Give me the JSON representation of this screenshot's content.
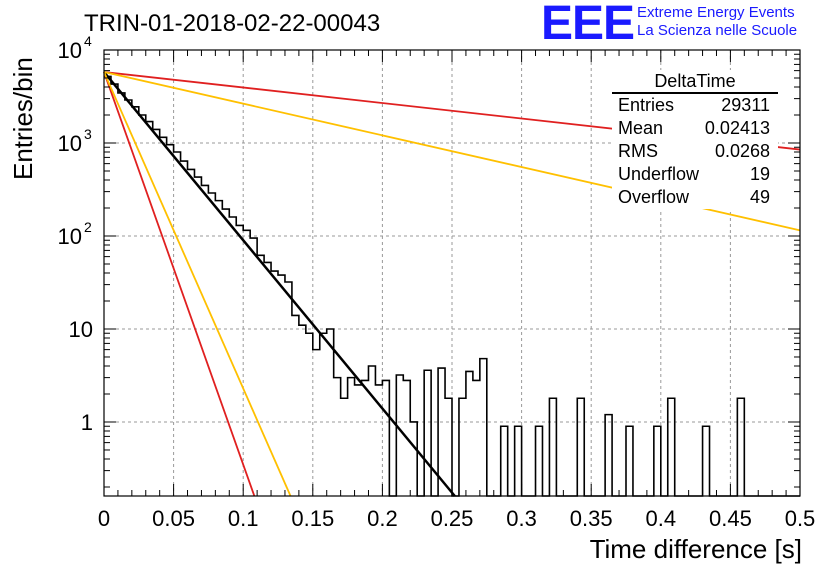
{
  "title": "TRIN-01-2018-02-22-00043",
  "logo": {
    "mark": "EEE",
    "line1": "Extreme Energy Events",
    "line2": "La Scienza nelle Scuole",
    "color": "#1a1aff"
  },
  "stats": {
    "name": "DeltaTime",
    "rows": [
      {
        "label": "Entries",
        "value": "29311"
      },
      {
        "label": "Mean",
        "value": "0.02413"
      },
      {
        "label": "RMS",
        "value": "0.0268"
      },
      {
        "label": "Underflow",
        "value": "19"
      },
      {
        "label": "Overflow",
        "value": "49"
      }
    ]
  },
  "chart_data": {
    "type": "line",
    "xlabel": "Time difference [s]",
    "ylabel": "Entries/bin",
    "xlim": [
      0,
      0.5
    ],
    "ylim": [
      0.16,
      10000
    ],
    "ylog": true,
    "grid": true,
    "x_ticks": [
      "0",
      "0.05",
      "0.1",
      "0.15",
      "0.2",
      "0.25",
      "0.3",
      "0.35",
      "0.4",
      "0.45",
      "0.5"
    ],
    "y_ticks": [
      {
        "value": 1,
        "label": "1"
      },
      {
        "value": 10,
        "label": "10"
      },
      {
        "value": 100,
        "label": "10",
        "exp": "2"
      },
      {
        "value": 1000,
        "label": "10",
        "exp": "3"
      },
      {
        "value": 10000,
        "label": "10",
        "exp": "4"
      }
    ],
    "histogram": {
      "name": "DeltaTime",
      "bin_width": 0.005,
      "color": "#000000",
      "values": [
        5200,
        4300,
        3450,
        2900,
        2450,
        2000,
        1700,
        1400,
        1150,
        960,
        800,
        640,
        520,
        430,
        350,
        290,
        240,
        195,
        160,
        130,
        115,
        95,
        62,
        52,
        42,
        38,
        32,
        14,
        11,
        9,
        6,
        9,
        10,
        3,
        1.8,
        3,
        2.5,
        2.8,
        4,
        2.5,
        2.8,
        0,
        3.2,
        2.8,
        1,
        0,
        3.6,
        0,
        3.8,
        1.8,
        0,
        1.8,
        3.5,
        2.8,
        4.8,
        0,
        0,
        0.9,
        0,
        0.9,
        0,
        0,
        0.9,
        0,
        1.8,
        0,
        0,
        0,
        1.8,
        0,
        0,
        0,
        1.2,
        0,
        0,
        0.9,
        0,
        0,
        0,
        0.9,
        0,
        1.8,
        0,
        0,
        0,
        0,
        0.9,
        0,
        0,
        0,
        0,
        1.8,
        0,
        0,
        0,
        0,
        0,
        0,
        0,
        0
      ]
    },
    "fits": [
      {
        "name": "fit",
        "color": "#000000",
        "width": 2.5,
        "x": [
          0,
          0.252
        ],
        "y": [
          5800,
          0.16
        ]
      },
      {
        "name": "red-steep",
        "color": "#e02020",
        "width": 1.8,
        "x": [
          0,
          0.108
        ],
        "y": [
          5800,
          0.16
        ]
      },
      {
        "name": "orange-steep",
        "color": "#ffc000",
        "width": 1.8,
        "x": [
          0,
          0.134
        ],
        "y": [
          5800,
          0.16
        ]
      },
      {
        "name": "red-slow",
        "color": "#e02020",
        "width": 1.8,
        "x": [
          0,
          0.5
        ],
        "y": [
          5800,
          850
        ]
      },
      {
        "name": "orange-slow",
        "color": "#ffc000",
        "width": 1.8,
        "x": [
          0,
          0.5
        ],
        "y": [
          5800,
          115
        ]
      }
    ]
  }
}
